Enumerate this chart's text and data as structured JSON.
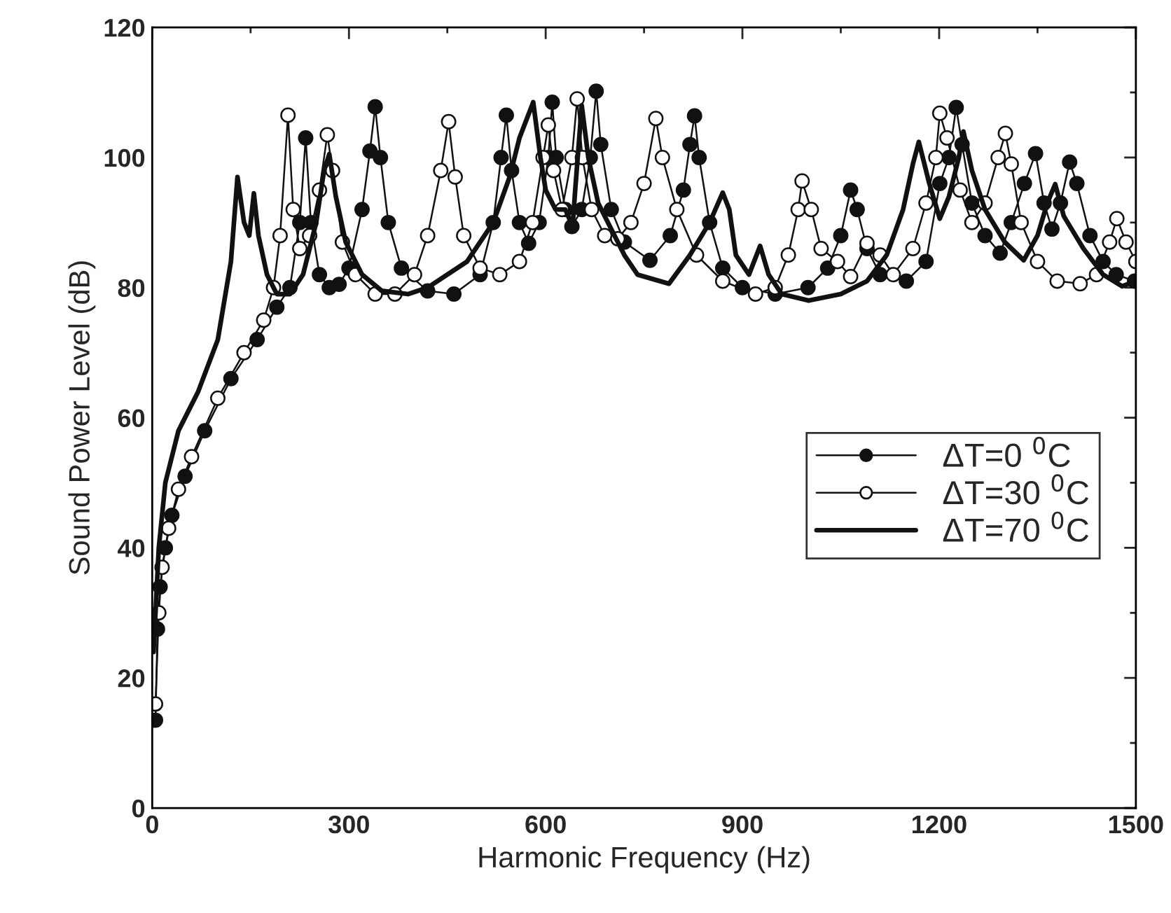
{
  "chart_data": {
    "type": "line",
    "xlabel": "Harmonic Frequency (Hz)",
    "ylabel": "Sound Power Level (dB)",
    "xlim": [
      0,
      1500
    ],
    "xticks": [
      0,
      300,
      600,
      900,
      1200,
      1500
    ],
    "ylim": [
      0,
      120
    ],
    "yticks": [
      0,
      20,
      40,
      60,
      80,
      100,
      120
    ],
    "grid": false,
    "legend": "right",
    "series": [
      {
        "name": "ΔT=0 $^{0}$C",
        "color": "#111111",
        "marker": "circle",
        "x": [
          5,
          8,
          12,
          20,
          30,
          50,
          80,
          120,
          160,
          190,
          210,
          225,
          234,
          242,
          255,
          270,
          285,
          300,
          320,
          332,
          340,
          348,
          360,
          380,
          420,
          460,
          500,
          520,
          532,
          540,
          548,
          560,
          574,
          590,
          604,
          610,
          616,
          630,
          640,
          655,
          668,
          677,
          684,
          700,
          720,
          759,
          790,
          810,
          820,
          827,
          834,
          850,
          870,
          900,
          950,
          1000,
          1030,
          1050,
          1065,
          1075,
          1090,
          1110,
          1150,
          1180,
          1201,
          1215,
          1226,
          1235,
          1250,
          1270,
          1293,
          1310,
          1330,
          1347,
          1360,
          1372,
          1385,
          1399,
          1410,
          1430,
          1450,
          1470,
          1498
        ],
        "values": [
          13.5,
          27.5,
          34,
          40,
          45,
          51,
          58,
          66,
          72,
          77,
          80,
          90,
          103,
          90,
          82,
          80,
          80.5,
          83,
          92,
          101,
          107.8,
          100,
          90,
          83,
          79.5,
          79,
          82,
          90,
          100,
          106.5,
          98,
          90,
          86.8,
          90,
          100,
          108.5,
          100,
          92,
          89.4,
          92,
          100,
          110.2,
          102,
          92,
          87,
          84.2,
          88,
          95,
          102,
          106.4,
          100,
          90,
          83,
          80,
          79,
          80,
          83,
          88,
          95,
          92,
          86,
          82,
          81,
          84,
          96,
          100,
          107.7,
          102,
          93,
          88,
          85.3,
          90,
          96,
          100.6,
          93,
          89,
          93,
          99.3,
          96,
          88,
          84,
          82,
          81
        ]
      },
      {
        "name": "ΔT=30 $^{0}$C",
        "color": "#111111",
        "marker": "circle",
        "x": [
          5,
          10,
          15,
          25,
          40,
          60,
          100,
          140,
          170,
          185,
          195,
          207,
          215,
          225,
          240,
          255,
          267,
          275,
          290,
          310,
          340,
          370,
          400,
          420,
          440,
          452,
          462,
          475,
          500,
          530,
          560,
          580,
          596,
          604,
          612,
          625,
          640,
          648,
          656,
          670,
          690,
          710,
          730,
          750,
          768,
          778,
          800,
          830,
          870,
          920,
          950,
          970,
          985,
          991,
          1005,
          1020,
          1045,
          1065,
          1090,
          1110,
          1130,
          1160,
          1180,
          1195,
          1201,
          1212,
          1232,
          1250,
          1270,
          1290,
          1301,
          1310,
          1325,
          1350,
          1380,
          1415,
          1440,
          1460,
          1471,
          1485,
          1500
        ],
        "values": [
          16,
          30,
          37,
          43,
          49,
          54,
          63,
          70,
          75,
          80,
          88,
          106.5,
          92,
          86,
          88,
          95,
          103.5,
          98,
          87,
          82,
          79,
          79,
          82,
          88,
          98,
          105.5,
          97,
          88,
          83,
          82,
          84,
          90,
          100,
          105,
          98,
          92,
          100,
          109,
          100,
          92,
          88,
          87.5,
          90,
          96,
          106,
          100,
          92,
          85,
          81,
          79,
          80,
          85,
          92,
          96.4,
          92,
          86,
          84,
          81.7,
          86.8,
          85,
          82,
          86,
          93,
          100,
          106.8,
          103,
          95,
          90,
          93,
          100,
          103.7,
          99,
          90,
          84,
          81,
          80.6,
          82,
          87,
          90.6,
          87,
          84
        ]
      },
      {
        "name": "ΔT=70 $^{0}$C",
        "color": "#111111",
        "marker": "none",
        "x": [
          2,
          5,
          10,
          20,
          40,
          70,
          100,
          120,
          130,
          140,
          148,
          155,
          162,
          175,
          190,
          210,
          230,
          250,
          262,
          270,
          280,
          295,
          320,
          350,
          390,
          420,
          480,
          520,
          545,
          560,
          581,
          592,
          600,
          615,
          630,
          641,
          645,
          655,
          665,
          680,
          700,
          720,
          740,
          788,
          820,
          850,
          870,
          880,
          890,
          910,
          927,
          940,
          960,
          1001,
          1050,
          1090,
          1120,
          1145,
          1160,
          1169,
          1185,
          1201,
          1215,
          1230,
          1237,
          1250,
          1270,
          1300,
          1329,
          1350,
          1365,
          1377,
          1390,
          1420,
          1450,
          1479,
          1500
        ],
        "values": [
          24,
          30,
          40,
          50,
          58,
          64,
          72,
          84,
          97,
          90,
          88,
          94.5,
          88,
          82,
          79,
          79,
          82,
          90,
          98,
          100.5,
          94,
          87,
          82,
          79.5,
          79,
          80,
          84,
          90,
          97,
          103,
          108.5,
          100,
          95,
          92,
          92,
          89.4,
          95,
          108,
          100,
          93,
          89,
          85,
          82,
          80.6,
          85,
          90,
          94.6,
          92,
          85,
          82,
          86.4,
          82,
          79,
          78,
          79,
          81,
          85,
          92,
          99,
          102.4,
          96,
          90.6,
          94,
          100,
          104,
          98,
          92,
          87,
          84.2,
          88,
          93,
          95.9,
          91,
          86,
          82,
          80.2,
          81
        ]
      }
    ]
  }
}
